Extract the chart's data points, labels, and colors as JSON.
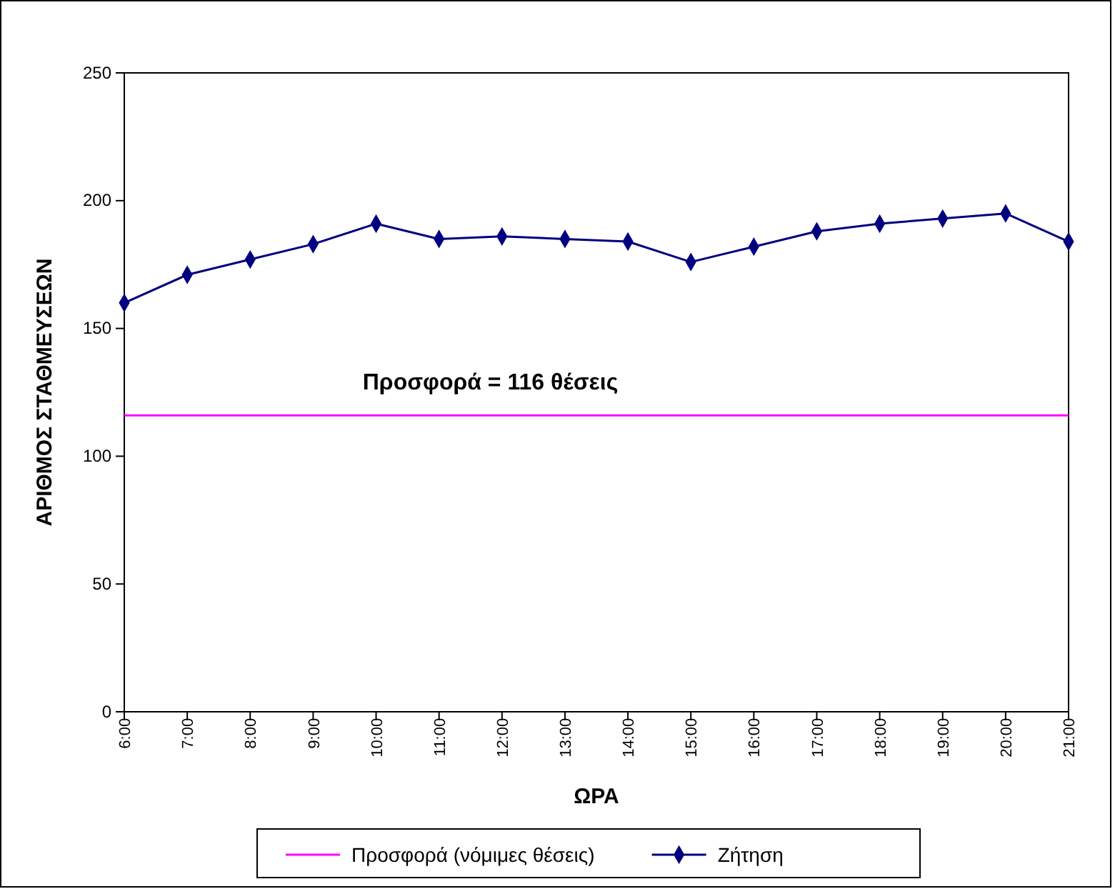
{
  "chart_data": {
    "type": "line",
    "xlabel": "ΩΡΑ",
    "ylabel": "ΑΡΙΘΜΟΣ ΣΤΑΘΜΕΥΣΕΩΝ",
    "categories": [
      "6:00",
      "7:00",
      "8:00",
      "9:00",
      "10:00",
      "11:00",
      "12:00",
      "13:00",
      "14:00",
      "15:00",
      "16:00",
      "17:00",
      "18:00",
      "19:00",
      "20:00",
      "21:00"
    ],
    "series": [
      {
        "name": "Προσφορά (νόμιμες θέσεις)",
        "color": "#ff00ff",
        "marker": "none",
        "values": [
          116,
          116,
          116,
          116,
          116,
          116,
          116,
          116,
          116,
          116,
          116,
          116,
          116,
          116,
          116,
          116
        ]
      },
      {
        "name": "Ζήτηση",
        "color": "#000080",
        "marker": "diamond",
        "values": [
          160,
          171,
          177,
          183,
          191,
          185,
          186,
          185,
          184,
          176,
          182,
          188,
          191,
          193,
          195,
          184
        ]
      }
    ],
    "annotations": [
      {
        "text": "Προσφορά = 116 θέσεις",
        "x": "10:00",
        "y": 116
      }
    ],
    "ylim": [
      0,
      250
    ],
    "yticks": [
      0,
      50,
      100,
      150,
      200,
      250
    ],
    "grid": false,
    "legend": "bottom",
    "line_style": "solid"
  }
}
